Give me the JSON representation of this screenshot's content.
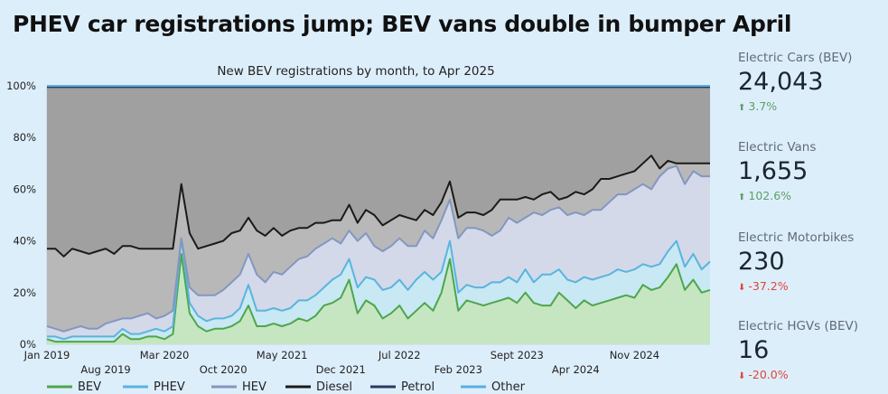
{
  "headline": "PHEV car registrations jump; BEV vans double in bumper April",
  "stats": [
    {
      "label": "Electric Cars (BEV)",
      "value": "24,043",
      "change": "3.7%",
      "direction": "up"
    },
    {
      "label": "Electric Vans",
      "value": "1,655",
      "change": "102.6%",
      "direction": "up"
    },
    {
      "label": "Electric Motorbikes",
      "value": "230",
      "change": "-37.2%",
      "direction": "down"
    },
    {
      "label": "Electric HGVs (BEV)",
      "value": "16",
      "change": "-20.0%",
      "direction": "down"
    }
  ],
  "icons": {
    "up": "arrow-up-icon",
    "down": "arrow-down-icon"
  },
  "colors": {
    "up": "#5e9f63",
    "down": "#e0453a"
  },
  "chart_data": {
    "type": "area",
    "title": "New BEV registrations by month, to  Apr 2025",
    "ylim": [
      0,
      100
    ],
    "y_ticks": [
      "0%",
      "20%",
      "40%",
      "60%",
      "80%",
      "100%"
    ],
    "x_ticks_row1": [
      {
        "label": "Jan 2019",
        "month": 0
      },
      {
        "label": "Mar 2020",
        "month": 14
      },
      {
        "label": "May 2021",
        "month": 28
      },
      {
        "label": "Jul 2022",
        "month": 42
      },
      {
        "label": "Sept 2023",
        "month": 56
      },
      {
        "label": "Nov 2024",
        "month": 70
      }
    ],
    "x_ticks_row2": [
      {
        "label": "Aug 2019",
        "month": 7
      },
      {
        "label": "Oct 2020",
        "month": 21
      },
      {
        "label": "Dec 2021",
        "month": 35
      },
      {
        "label": "Feb 2023",
        "month": 49
      },
      {
        "label": "Apr 2024",
        "month": 63
      }
    ],
    "grid": true,
    "legend_position": "bottom",
    "cumulative": true,
    "series": [
      {
        "name": "BEV",
        "line": "#4da64d",
        "fill": "#c6e6c2",
        "values": [
          2,
          1,
          1,
          1,
          1,
          1,
          1,
          1,
          1,
          4,
          2,
          2,
          3,
          3,
          2,
          4,
          35,
          12,
          7,
          5,
          6,
          6,
          7,
          9,
          15,
          7,
          7,
          8,
          7,
          8,
          10,
          9,
          11,
          15,
          16,
          18,
          25,
          12,
          17,
          15,
          10,
          12,
          15,
          10,
          13,
          16,
          13,
          20,
          33,
          13,
          17,
          16,
          15,
          16,
          17,
          18,
          16,
          20,
          16,
          15,
          15,
          20,
          17,
          14,
          17,
          15,
          16,
          17,
          18,
          19,
          18,
          23,
          21,
          22,
          26,
          31,
          21,
          25,
          20,
          21
        ]
      },
      {
        "name": "PHEV",
        "line": "#5ab4de",
        "fill": "#c8e8f3",
        "values": [
          3,
          3,
          2,
          3,
          3,
          3,
          3,
          3,
          3,
          6,
          4,
          4,
          5,
          6,
          5,
          7,
          41,
          16,
          11,
          9,
          10,
          10,
          11,
          14,
          23,
          13,
          13,
          14,
          13,
          14,
          17,
          17,
          19,
          22,
          25,
          27,
          33,
          22,
          26,
          25,
          21,
          22,
          25,
          21,
          25,
          28,
          25,
          28,
          40,
          20,
          23,
          22,
          22,
          24,
          24,
          26,
          24,
          29,
          24,
          27,
          27,
          29,
          25,
          24,
          26,
          25,
          26,
          27,
          29,
          28,
          29,
          31,
          30,
          31,
          36,
          40,
          30,
          35,
          29,
          32
        ]
      },
      {
        "name": "HEV",
        "line": "#8397bf",
        "fill": "#d3d9e9",
        "values": [
          7,
          6,
          5,
          6,
          7,
          6,
          6,
          8,
          9,
          10,
          10,
          11,
          12,
          10,
          11,
          13,
          41,
          22,
          19,
          19,
          19,
          21,
          24,
          27,
          35,
          27,
          24,
          28,
          27,
          30,
          33,
          34,
          37,
          39,
          41,
          39,
          44,
          40,
          43,
          38,
          36,
          38,
          41,
          38,
          38,
          44,
          41,
          48,
          56,
          41,
          45,
          45,
          44,
          42,
          44,
          49,
          47,
          49,
          51,
          50,
          52,
          53,
          50,
          51,
          50,
          52,
          52,
          55,
          58,
          58,
          60,
          62,
          60,
          65,
          68,
          69,
          62,
          67,
          65,
          65
        ]
      },
      {
        "name": "Diesel",
        "line": "#1a1a1a",
        "fill": "#b8b8b8",
        "values": [
          37,
          37,
          34,
          37,
          36,
          35,
          36,
          37,
          35,
          38,
          38,
          37,
          37,
          37,
          37,
          37,
          62,
          43,
          37,
          38,
          39,
          40,
          43,
          44,
          49,
          44,
          42,
          45,
          42,
          44,
          45,
          45,
          47,
          47,
          48,
          48,
          54,
          47,
          52,
          50,
          46,
          48,
          50,
          49,
          48,
          52,
          50,
          55,
          63,
          49,
          51,
          51,
          50,
          52,
          56,
          56,
          56,
          57,
          56,
          58,
          59,
          56,
          57,
          59,
          58,
          60,
          64,
          64,
          65,
          66,
          67,
          70,
          73,
          68,
          71,
          70,
          70,
          70,
          70,
          70
        ]
      },
      {
        "name": "Petrol",
        "line": "#2b3a5c",
        "fill": "#a0a0a0",
        "values": [
          99.5,
          99.5,
          99.5,
          99.5,
          99.5,
          99.5,
          99.5,
          99.5,
          99.5,
          99.5,
          99.5,
          99.5,
          99.5,
          99.5,
          99.5,
          99.5,
          99.5,
          99.5,
          99.5,
          99.5,
          99.5,
          99.5,
          99.5,
          99.5,
          99.5,
          99.5,
          99.5,
          99.5,
          99.5,
          99.5,
          99.5,
          99.5,
          99.5,
          99.5,
          99.5,
          99.5,
          99.5,
          99.5,
          99.5,
          99.5,
          99.5,
          99.5,
          99.5,
          99.5,
          99.5,
          99.5,
          99.5,
          99.5,
          99.5,
          99.5,
          99.5,
          99.5,
          99.5,
          99.5,
          99.5,
          99.5,
          99.5,
          99.5,
          99.5,
          99.5,
          99.5,
          99.5,
          99.5,
          99.5,
          99.5,
          99.5,
          99.5,
          99.5,
          99.5,
          99.5,
          99.5,
          99.5,
          99.5,
          99.5,
          99.5,
          99.5,
          99.5,
          99.5,
          99.5,
          99.5
        ]
      },
      {
        "name": "Other",
        "line": "#5aaee0",
        "fill": "#bfdff3",
        "values": [
          100,
          100,
          100,
          100,
          100,
          100,
          100,
          100,
          100,
          100,
          100,
          100,
          100,
          100,
          100,
          100,
          100,
          100,
          100,
          100,
          100,
          100,
          100,
          100,
          100,
          100,
          100,
          100,
          100,
          100,
          100,
          100,
          100,
          100,
          100,
          100,
          100,
          100,
          100,
          100,
          100,
          100,
          100,
          100,
          100,
          100,
          100,
          100,
          100,
          100,
          100,
          100,
          100,
          100,
          100,
          100,
          100,
          100,
          100,
          100,
          100,
          100,
          100,
          100,
          100,
          100,
          100,
          100,
          100,
          100,
          100,
          100,
          100,
          100,
          100,
          100,
          100,
          100,
          100,
          100
        ]
      }
    ]
  }
}
